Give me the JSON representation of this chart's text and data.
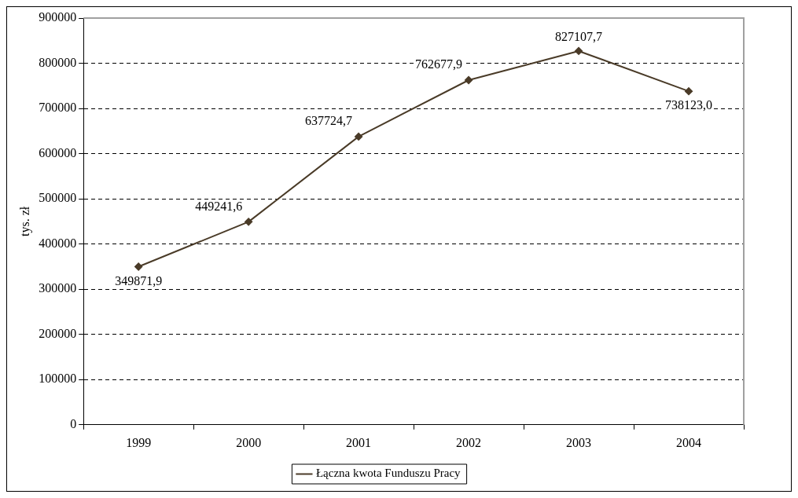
{
  "chart_data": {
    "type": "line",
    "ylabel": "tys. zł",
    "categories": [
      "1999",
      "2000",
      "2001",
      "2002",
      "2003",
      "2004"
    ],
    "series": [
      {
        "name": "Łączna kwota Funduszu Pracy",
        "color": "#4a3b28",
        "values": [
          349871.9,
          449241.6,
          637724.7,
          762677.9,
          827107.7,
          738123.0
        ],
        "value_labels": [
          "349871,9",
          "449241,6",
          "637724,7",
          "762677,9",
          "827107,7",
          "738123,0"
        ]
      }
    ],
    "ylim": [
      0,
      900000
    ],
    "yticks": [
      0,
      100000,
      200000,
      300000,
      400000,
      500000,
      600000,
      700000,
      800000,
      900000
    ],
    "grid": "y",
    "legend": "bottom",
    "marker": "diamond",
    "line_style": "solid"
  }
}
